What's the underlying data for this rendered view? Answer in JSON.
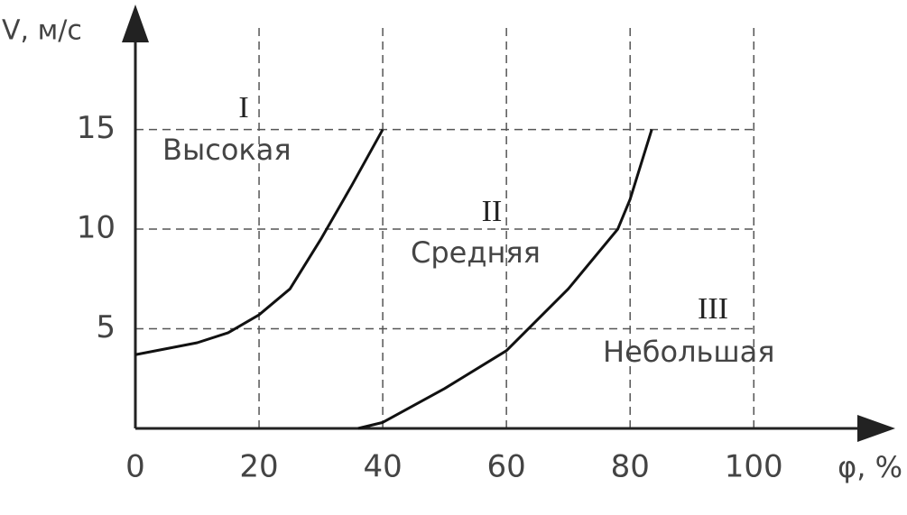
{
  "chart_data": {
    "type": "line",
    "x_label": "φ, %",
    "y_label": "V, м/с",
    "annotations": [
      "I",
      "Высокая",
      "II",
      "Средняя",
      "III",
      "Небольшая"
    ],
    "series": [
      {
        "color": "#111",
        "x": [
          0,
          10,
          15,
          20,
          25,
          30,
          35,
          40
        ],
        "values": [
          3.7,
          4.3,
          4.8,
          5.7,
          7.0,
          9.5,
          12.2,
          15
        ]
      },
      {
        "color": "#111",
        "x": [
          36,
          40,
          50,
          60,
          70,
          78,
          80,
          82,
          83.5
        ],
        "values": [
          0,
          0.3,
          2.0,
          3.9,
          7.0,
          10.0,
          11.5,
          13.5,
          15
        ]
      }
    ],
    "xlim": [
      0,
      122
    ],
    "ylim": [
      0,
      21
    ],
    "xticks": [
      0,
      20,
      40,
      60,
      80,
      100
    ],
    "yticks": [
      5,
      10,
      15
    ],
    "grid": true
  }
}
